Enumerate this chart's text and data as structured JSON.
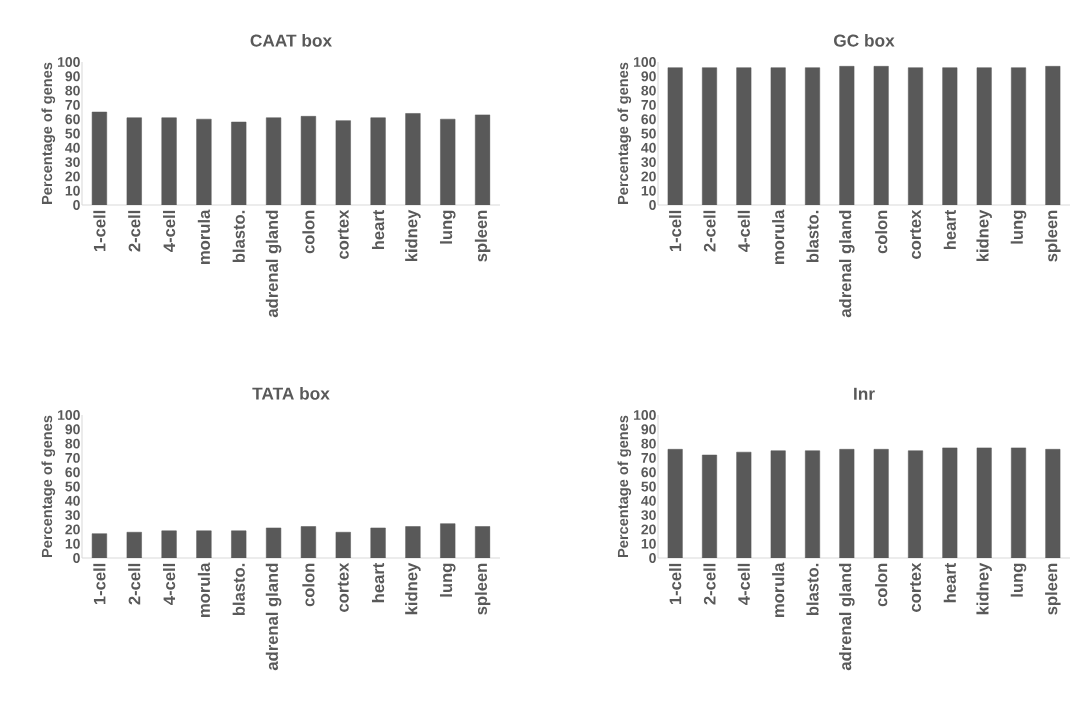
{
  "chart_data": [
    {
      "type": "bar",
      "title": "CAAT box",
      "ylabel": "Percentage of genes",
      "categories": [
        "1-cell",
        "2-cell",
        "4-cell",
        "morula",
        "blasto.",
        "adrenal gland",
        "colon",
        "cortex",
        "heart",
        "kidney",
        "lung",
        "spleen"
      ],
      "values": [
        65,
        61,
        61,
        60,
        58,
        61,
        62,
        59,
        61,
        64,
        60,
        63
      ],
      "color": "#595959",
      "ylim": [
        0,
        100
      ],
      "yticks": [
        0,
        10,
        20,
        30,
        40,
        50,
        60,
        70,
        80,
        90,
        100
      ]
    },
    {
      "type": "bar",
      "title": "GC box",
      "ylabel": "Percentage of genes",
      "categories": [
        "1-cell",
        "2-cell",
        "4-cell",
        "morula",
        "blasto.",
        "adrenal gland",
        "colon",
        "cortex",
        "heart",
        "kidney",
        "lung",
        "spleen"
      ],
      "values": [
        96,
        96,
        96,
        96,
        96,
        97,
        97,
        96,
        96,
        96,
        96,
        97
      ],
      "color": "#595959",
      "ylim": [
        0,
        100
      ],
      "yticks": [
        0,
        10,
        20,
        30,
        40,
        50,
        60,
        70,
        80,
        90,
        100
      ]
    },
    {
      "type": "bar",
      "title": "TATA box",
      "ylabel": "Percentage of genes",
      "categories": [
        "1-cell",
        "2-cell",
        "4-cell",
        "morula",
        "blasto.",
        "adrenal gland",
        "colon",
        "cortex",
        "heart",
        "kidney",
        "lung",
        "spleen"
      ],
      "values": [
        17,
        18,
        19,
        19,
        19,
        21,
        22,
        18,
        21,
        22,
        24,
        22
      ],
      "color": "#595959",
      "ylim": [
        0,
        100
      ],
      "yticks": [
        0,
        10,
        20,
        30,
        40,
        50,
        60,
        70,
        80,
        90,
        100
      ]
    },
    {
      "type": "bar",
      "title": "Inr",
      "ylabel": "Percentage of genes",
      "categories": [
        "1-cell",
        "2-cell",
        "4-cell",
        "morula",
        "blasto.",
        "adrenal gland",
        "colon",
        "cortex",
        "heart",
        "kidney",
        "lung",
        "spleen"
      ],
      "values": [
        76,
        72,
        74,
        75,
        75,
        76,
        76,
        75,
        77,
        77,
        77,
        76
      ],
      "color": "#595959",
      "ylim": [
        0,
        100
      ],
      "yticks": [
        0,
        10,
        20,
        30,
        40,
        50,
        60,
        70,
        80,
        90,
        100
      ]
    }
  ]
}
